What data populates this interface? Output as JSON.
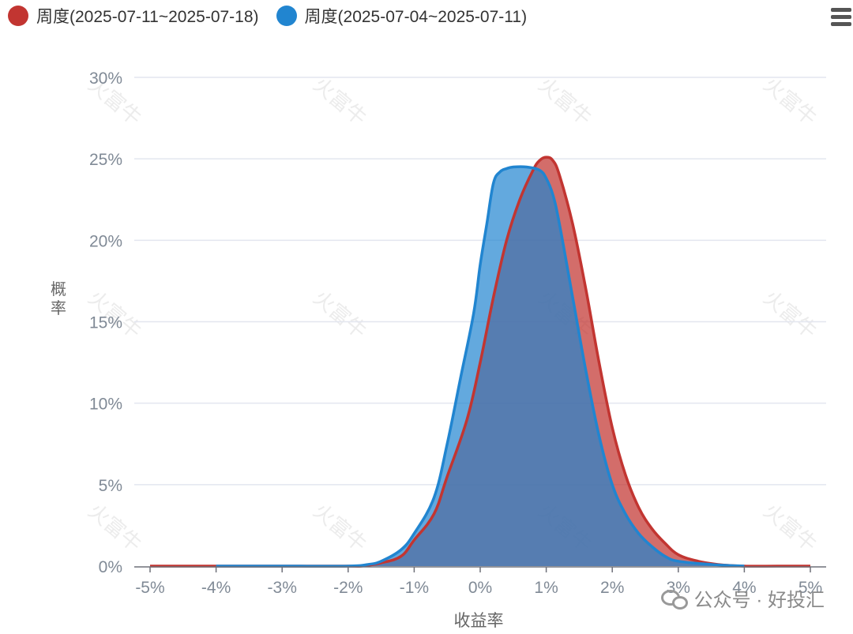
{
  "legend": {
    "items": [
      {
        "label": "周度(2025-07-11~2025-07-18)",
        "color": "#c23531"
      },
      {
        "label": "周度(2025-07-04~2025-07-11)",
        "color": "#2185d0"
      }
    ]
  },
  "watermark": {
    "text": "公众号 · 好投汇",
    "icon": "wechat-icon"
  },
  "menu_icon": "hamburger-menu-icon",
  "chart_data": {
    "type": "area",
    "xlabel": "收益率",
    "ylabel": "概率",
    "xlim": [
      -5,
      5
    ],
    "ylim": [
      0,
      30
    ],
    "x_ticks": [
      "-5%",
      "-4%",
      "-3%",
      "-2%",
      "-1%",
      "0%",
      "1%",
      "2%",
      "3%",
      "4%",
      "5%"
    ],
    "y_ticks": [
      "0%",
      "5%",
      "10%",
      "15%",
      "20%",
      "25%",
      "30%"
    ],
    "grid": true,
    "legend_position": "top-left",
    "series": [
      {
        "name": "周度(2025-07-11~2025-07-18)",
        "color": "#c23531",
        "x": [
          -5,
          -4,
          -3,
          -2,
          -1.8,
          -1.5,
          -1.2,
          -1.0,
          -0.7,
          -0.5,
          -0.2,
          0,
          0.2,
          0.4,
          0.6,
          0.8,
          0.9,
          1.0,
          1.1,
          1.2,
          1.4,
          1.6,
          1.8,
          2.0,
          2.2,
          2.4,
          2.6,
          2.8,
          3.0,
          3.3,
          3.6,
          4.0,
          4.5,
          5.0
        ],
        "values": [
          0,
          0,
          0,
          0,
          0,
          0.2,
          0.6,
          1.6,
          3.2,
          5.5,
          9.0,
          12.5,
          16.5,
          20.0,
          22.5,
          24.3,
          24.9,
          25.1,
          24.9,
          24.0,
          21.0,
          17.0,
          12.5,
          8.5,
          5.6,
          3.6,
          2.3,
          1.4,
          0.7,
          0.3,
          0.1,
          0,
          0,
          0
        ]
      },
      {
        "name": "周度(2025-07-04~2025-07-11)",
        "color": "#2185d0",
        "x": [
          -4,
          -3,
          -2,
          -1.7,
          -1.5,
          -1.2,
          -1.0,
          -0.7,
          -0.5,
          -0.3,
          -0.1,
          0,
          0.1,
          0.2,
          0.3,
          0.4,
          0.5,
          0.7,
          0.9,
          1.0,
          1.1,
          1.2,
          1.4,
          1.6,
          1.8,
          2.0,
          2.2,
          2.4,
          2.6,
          2.8,
          3.0,
          3.5,
          4.0
        ],
        "values": [
          0,
          0,
          0,
          0.1,
          0.3,
          1.0,
          2.0,
          4.2,
          7.5,
          11.5,
          15.5,
          18.5,
          21.0,
          23.5,
          24.2,
          24.4,
          24.5,
          24.5,
          24.3,
          23.8,
          22.8,
          21.0,
          16.5,
          12.0,
          8.0,
          5.0,
          3.2,
          2.0,
          1.2,
          0.6,
          0.3,
          0.1,
          0
        ]
      }
    ]
  }
}
